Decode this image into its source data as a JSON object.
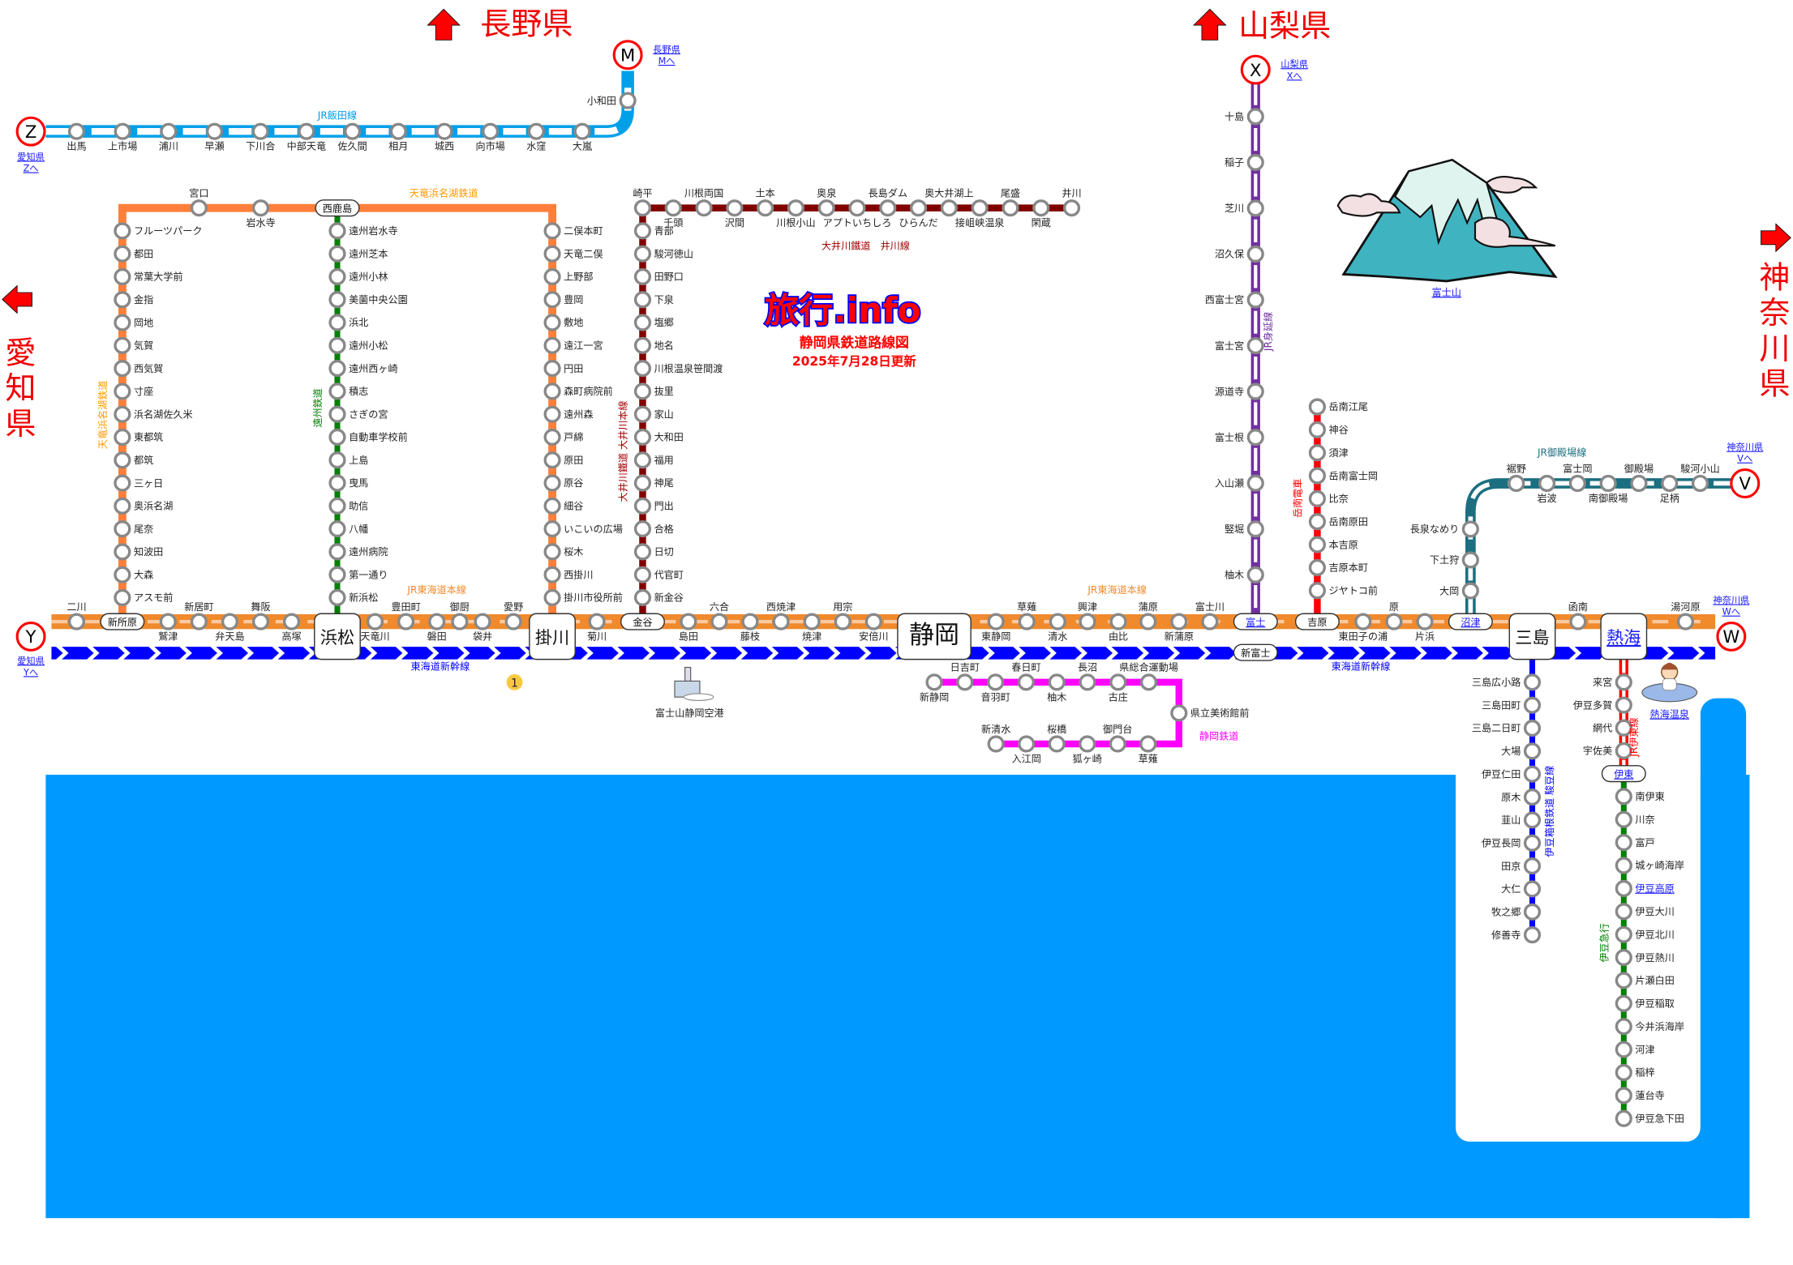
{
  "map": {
    "logo": "旅行.info",
    "title": "静岡県鉄道路線図",
    "updated": "2025年7月28日更新"
  },
  "prefectures": {
    "nagano": "長野県",
    "yamanashi": "山梨県",
    "aichi": "愛知県",
    "kanagawa": "神奈川県"
  },
  "connectors": [
    {
      "letter": "Z",
      "link_pref": "愛知県",
      "link_to": "Zへ"
    },
    {
      "letter": "M",
      "link_pref": "長野県",
      "link_to": "Mへ"
    },
    {
      "letter": "X",
      "link_pref": "山梨県",
      "link_to": "Xへ"
    },
    {
      "letter": "V",
      "link_pref": "神奈川県",
      "link_to": "Vへ"
    },
    {
      "letter": "W",
      "link_pref": "神奈川県",
      "link_to": "Wへ"
    },
    {
      "letter": "Y",
      "link_pref": "愛知県",
      "link_to": "Yへ"
    }
  ],
  "landmarks": {
    "fuji": "富士山",
    "airport": "富士山静岡空港",
    "atami_onsen": "熱海温泉",
    "marker_number": "1"
  },
  "colors": {
    "sea": "#0099ff",
    "iida": "#00a0e9",
    "tenhama": "#ff7f3a",
    "tokaido": "#f08a2c",
    "enshu": "#008000",
    "oigawa": "#800000",
    "shizutetsu": "#ff00ff",
    "minobu": "#7030a0",
    "gakunan": "#ff0000",
    "gotemba": "#1b6f80",
    "izuhakone": "#0000ff",
    "ito": "#ff0000",
    "izukyu": "#008000",
    "shinkansen": "#0000ff",
    "prefecture_text": "#f00000"
  },
  "lines": {
    "iida": {
      "name": "JR飯田線",
      "stations": [
        "出馬",
        "上市場",
        "浦川",
        "早瀬",
        "下川合",
        "中部天竜",
        "佐久間",
        "相月",
        "城西",
        "向市場",
        "水窪",
        "大嵐",
        "小和田"
      ]
    },
    "tenhama": {
      "name": "天竜浜名湖鉄道",
      "stations": [
        "アスモ前",
        "大森",
        "知波田",
        "尾奈",
        "奥浜名湖",
        "三ヶ日",
        "都筑",
        "東都筑",
        "浜名湖佐久米",
        "寸座",
        "西気賀",
        "気賀",
        "岡地",
        "金指",
        "常葉大学前",
        "都田",
        "フルーツパーク",
        "宮口",
        "岩水寺",
        "西鹿島",
        "二俣本町",
        "天竜二俣",
        "上野部",
        "豊岡",
        "敷地",
        "遠江一宮",
        "円田",
        "森町病院前",
        "遠州森",
        "戸綿",
        "原田",
        "原谷",
        "細谷",
        "いこいの広場",
        "桜木",
        "西掛川",
        "掛川市役所前"
      ]
    },
    "enshu": {
      "name": "遠州鉄道",
      "stations": [
        "遠州岩水寺",
        "遠州芝本",
        "遠州小林",
        "美薗中央公園",
        "浜北",
        "遠州小松",
        "遠州西ヶ崎",
        "積志",
        "さぎの宮",
        "自動車学校前",
        "上島",
        "曳馬",
        "助信",
        "八幡",
        "遠州病院",
        "第一通り",
        "新浜松"
      ]
    },
    "tokaido": {
      "name": "JR東海道本線",
      "stations": [
        "二川",
        "新所原",
        "鷲津",
        "新居町",
        "弁天島",
        "舞阪",
        "高塚",
        "浜松",
        "天竜川",
        "豊田町",
        "磐田",
        "御厨",
        "袋井",
        "愛野",
        "掛川",
        "菊川",
        "金谷",
        "島田",
        "六合",
        "藤枝",
        "西焼津",
        "焼津",
        "用宗",
        "安倍川",
        "静岡",
        "東静岡",
        "草薙",
        "清水",
        "興津",
        "由比",
        "蒲原",
        "新蒲原",
        "富士川",
        "富士",
        "吉原",
        "東田子の浦",
        "原",
        "片浜",
        "沼津",
        "三島",
        "函南",
        "熱海",
        "湯河原"
      ]
    },
    "shinkansen": {
      "name": "東海道新幹線",
      "stations": [
        "新富士"
      ]
    },
    "oigawa": {
      "name": "大井川鐵道 大井川本線",
      "stations": [
        "青部",
        "駿河徳山",
        "田野口",
        "下泉",
        "塩郷",
        "地名",
        "川根温泉笹間渡",
        "抜里",
        "家山",
        "大和田",
        "福用",
        "神尾",
        "門出",
        "合格",
        "日切",
        "代官町",
        "新金谷"
      ]
    },
    "ikawa": {
      "name": "大井川鐵道　井川線",
      "stations": [
        "崎平",
        "千頭",
        "川根両国",
        "沢間",
        "土本",
        "川根小山",
        "奥泉",
        "アプトいちしろ",
        "長島ダム",
        "ひらんだ",
        "奥大井湖上",
        "接岨峡温泉",
        "尾盛",
        "閑蔵",
        "井川"
      ]
    },
    "shizutetsu": {
      "name": "静岡鉄道",
      "stations": [
        "新静岡",
        "日吉町",
        "音羽町",
        "春日町",
        "柚木",
        "長沼",
        "古庄",
        "県総合運動場",
        "県立美術館前",
        "草薙",
        "御門台",
        "狐ヶ崎",
        "桜橋",
        "入江岡",
        "新清水"
      ]
    },
    "minobu": {
      "name": "JR身延線",
      "stations": [
        "十島",
        "稲子",
        "芝川",
        "沼久保",
        "西富士宮",
        "富士宮",
        "源道寺",
        "富士根",
        "入山瀬",
        "竪堀",
        "柚木"
      ]
    },
    "gakunan": {
      "name": "岳南電車",
      "stations": [
        "岳南江尾",
        "神谷",
        "須津",
        "岳南富士岡",
        "比奈",
        "岳南原田",
        "本吉原",
        "吉原本町",
        "ジヤトコ前"
      ]
    },
    "gotemba": {
      "name": "JR御殿場線",
      "stations": [
        "大岡",
        "下土狩",
        "長泉なめり",
        "裾野",
        "岩波",
        "富士岡",
        "南御殿場",
        "御殿場",
        "足柄",
        "駿河小山"
      ]
    },
    "izuhakone": {
      "name": "伊豆箱根鉄道 駿豆線",
      "stations": [
        "三島広小路",
        "三島田町",
        "三島二日町",
        "大場",
        "伊豆仁田",
        "原木",
        "韮山",
        "伊豆長岡",
        "田京",
        "大仁",
        "牧之郷",
        "修善寺"
      ]
    },
    "ito": {
      "name": "JR伊東線",
      "stations": [
        "来宮",
        "伊豆多賀",
        "網代",
        "宇佐美",
        "伊東"
      ]
    },
    "izukyu": {
      "name": "伊豆急行",
      "stations": [
        "南伊東",
        "川奈",
        "富戸",
        "城ヶ崎海岸",
        "伊豆高原",
        "伊豆大川",
        "伊豆北川",
        "伊豆熱川",
        "片瀬白田",
        "伊豆稲取",
        "今井浜海岸",
        "河津",
        "稲梓",
        "蓮台寺",
        "伊豆急下田"
      ]
    }
  }
}
